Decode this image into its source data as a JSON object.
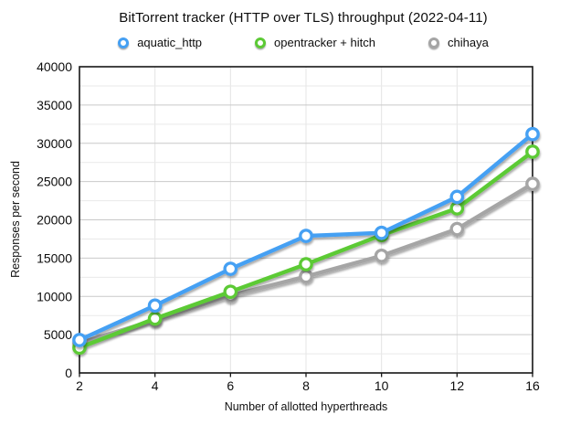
{
  "chart_data": {
    "type": "line",
    "title": "BitTorrent tracker (HTTP over TLS) throughput (2022-04-11)",
    "xlabel": "Number of allotted hyperthreads",
    "ylabel": "Responses per second",
    "categories": [
      "2",
      "4",
      "6",
      "8",
      "10",
      "12",
      "16"
    ],
    "series": [
      {
        "name": "aquatic_http",
        "color": "#45a0f3",
        "values": [
          4300,
          8800,
          13600,
          17900,
          18300,
          23000,
          31200
        ]
      },
      {
        "name": "opentracker + hitch",
        "color": "#5cca35",
        "values": [
          3300,
          7100,
          10600,
          14200,
          18000,
          21500,
          28900
        ]
      },
      {
        "name": "chihaya",
        "color": "#a5a5a5",
        "values": [
          3900,
          6900,
          10100,
          12600,
          15300,
          18800,
          24700
        ]
      }
    ],
    "ylim": [
      0,
      40000
    ],
    "y_major_step": 5000,
    "y_minor_step": 2500,
    "y_tick_labels": [
      "0",
      "5000",
      "10000",
      "15000",
      "20000",
      "25000",
      "30000",
      "35000",
      "40000"
    ],
    "grid": true,
    "legend_position": "top",
    "marker_style": "open-circle",
    "colors": {
      "frame": "#161616",
      "major_grid": "#c9c9c9",
      "minor_grid": "#e9e9e9",
      "vertical_grid": "#e4e4e4",
      "background": "#ffffff",
      "text": "#0d0d0d"
    }
  }
}
